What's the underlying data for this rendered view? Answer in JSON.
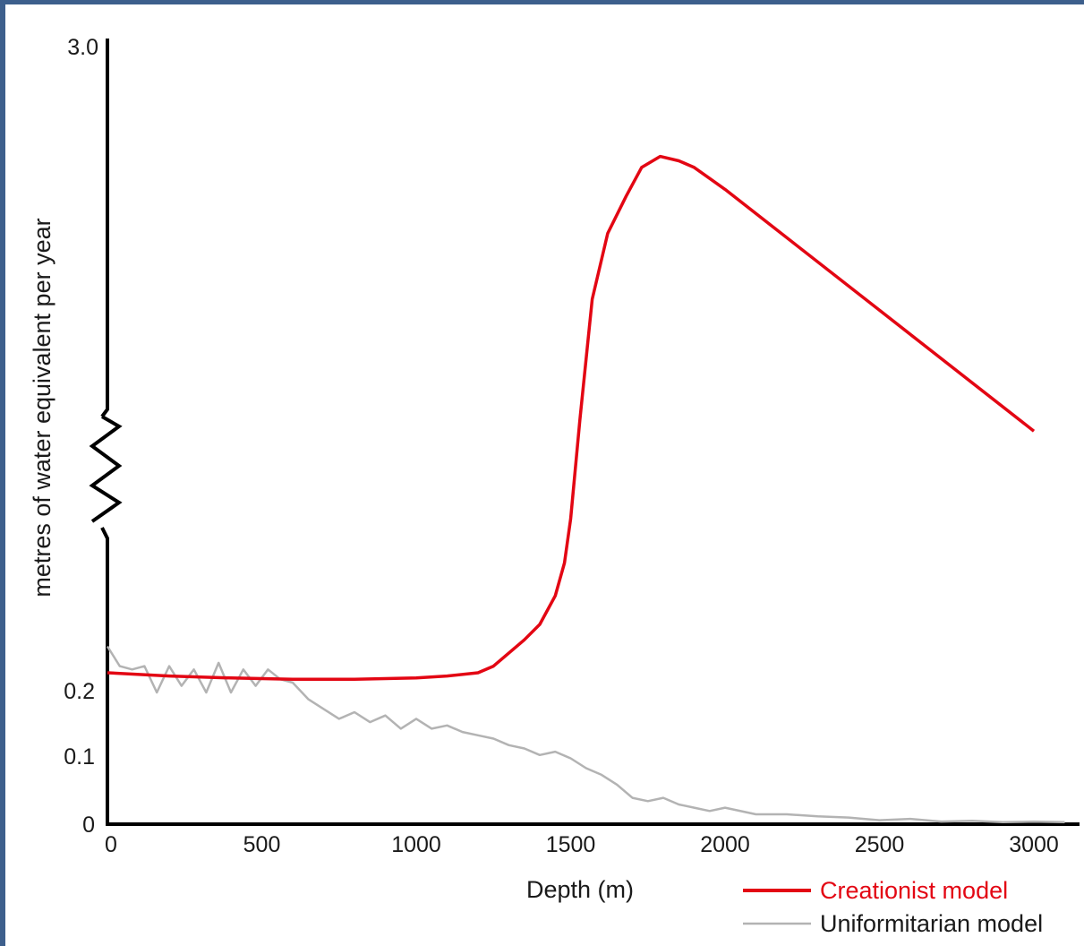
{
  "chart_data": {
    "type": "line",
    "title": "",
    "xlabel": "Depth (m)",
    "ylabel": "metres of water equivalent per year",
    "xlim": [
      0,
      3150
    ],
    "y_axis_break": true,
    "y_ticks_lower": [
      "0",
      "0.1",
      "0.2"
    ],
    "y_tick_upper": "3.0",
    "x_ticks": [
      "0",
      "500",
      "1000",
      "1500",
      "2000",
      "2500",
      "3000"
    ],
    "legend_position": "bottom-right",
    "series": [
      {
        "name": "Creationist model",
        "color": "#e30613",
        "x": [
          0,
          200,
          400,
          600,
          800,
          1000,
          1100,
          1200,
          1250,
          1300,
          1350,
          1400,
          1450,
          1480,
          1500,
          1530,
          1570,
          1620,
          1680,
          1730,
          1790,
          1850,
          1900,
          1950,
          2000,
          2500,
          3000
        ],
        "y": [
          0.23,
          0.225,
          0.222,
          0.22,
          0.22,
          0.222,
          0.225,
          0.23,
          0.24,
          0.26,
          0.3,
          0.37,
          0.5,
          0.65,
          0.85,
          1.3,
          1.85,
          2.15,
          2.32,
          2.45,
          2.5,
          2.48,
          2.45,
          2.4,
          2.35,
          1.8,
          1.25
        ]
      },
      {
        "name": "Uniformitarian model",
        "color": "#b3b3b3",
        "x": [
          0,
          40,
          80,
          120,
          160,
          200,
          240,
          280,
          320,
          360,
          400,
          440,
          480,
          520,
          560,
          600,
          650,
          700,
          750,
          800,
          850,
          900,
          950,
          1000,
          1050,
          1100,
          1150,
          1200,
          1250,
          1300,
          1350,
          1400,
          1450,
          1500,
          1550,
          1600,
          1650,
          1700,
          1750,
          1800,
          1850,
          1900,
          1950,
          2000,
          2100,
          2200,
          2300,
          2400,
          2500,
          2600,
          2700,
          2800,
          2900,
          3000,
          3100
        ],
        "y": [
          0.27,
          0.24,
          0.235,
          0.24,
          0.2,
          0.24,
          0.21,
          0.235,
          0.2,
          0.245,
          0.2,
          0.235,
          0.21,
          0.235,
          0.22,
          0.215,
          0.19,
          0.175,
          0.16,
          0.17,
          0.155,
          0.165,
          0.145,
          0.16,
          0.145,
          0.15,
          0.14,
          0.135,
          0.13,
          0.12,
          0.115,
          0.105,
          0.11,
          0.1,
          0.085,
          0.075,
          0.06,
          0.04,
          0.035,
          0.04,
          0.03,
          0.025,
          0.02,
          0.025,
          0.015,
          0.015,
          0.012,
          0.01,
          0.006,
          0.008,
          0.004,
          0.005,
          0.003,
          0.004,
          0.003
        ]
      }
    ]
  }
}
